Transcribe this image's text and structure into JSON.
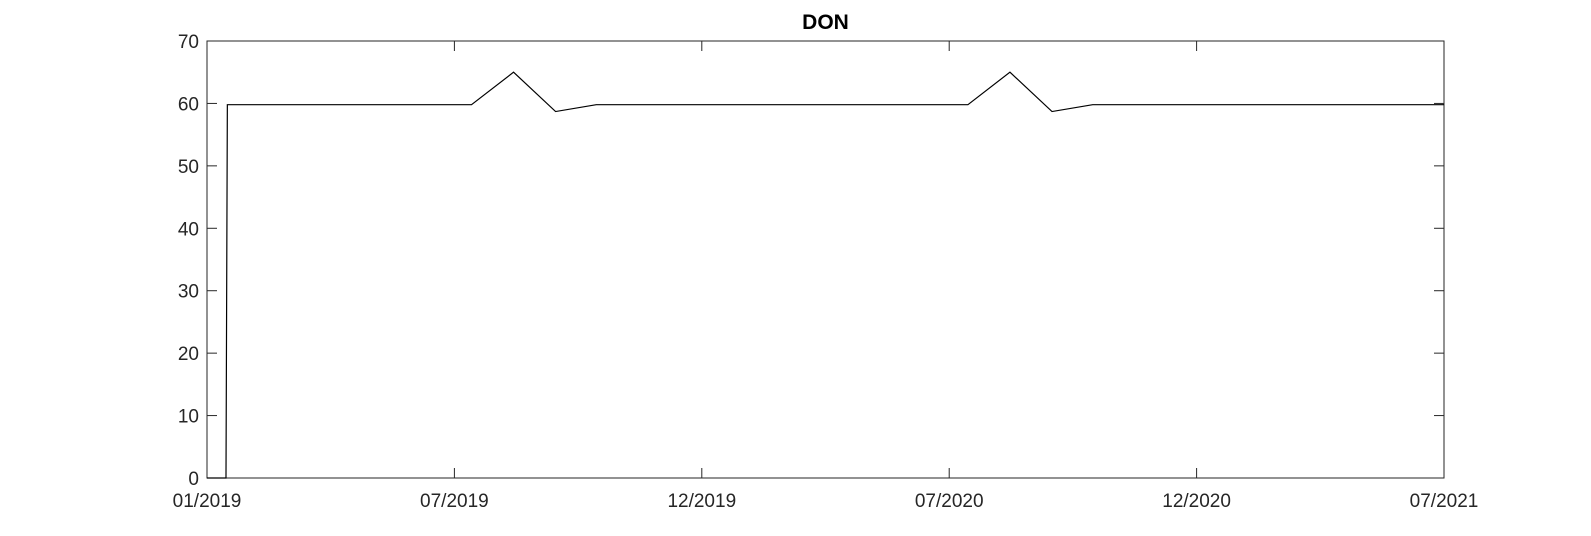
{
  "chart_data": {
    "type": "line",
    "title": "DON",
    "xlabel": "",
    "ylabel": "",
    "x_ticks": [
      "01/2019",
      "07/2019",
      "12/2019",
      "07/2020",
      "12/2020",
      "07/2021"
    ],
    "y_ticks": [
      "0",
      "10",
      "20",
      "30",
      "40",
      "50",
      "60",
      "70"
    ],
    "ylim": [
      0,
      70
    ],
    "xlim": [
      "2019-01-01",
      "2021-07-01"
    ],
    "grid": false,
    "box": true,
    "series": [
      {
        "color": "#000000",
        "points": [
          {
            "x": "2019-01-01",
            "y": 0
          },
          {
            "x": "2019-01-15",
            "y": 0
          },
          {
            "x": "2019-01-16",
            "y": 59.8
          },
          {
            "x": "2019-07-15",
            "y": 59.8
          },
          {
            "x": "2019-08-15",
            "y": 65
          },
          {
            "x": "2019-09-15",
            "y": 58.7
          },
          {
            "x": "2019-10-15",
            "y": 59.8
          },
          {
            "x": "2020-07-15",
            "y": 59.8
          },
          {
            "x": "2020-08-15",
            "y": 65
          },
          {
            "x": "2020-09-15",
            "y": 58.7
          },
          {
            "x": "2020-10-15",
            "y": 59.8
          },
          {
            "x": "2021-07-01",
            "y": 59.8
          }
        ]
      }
    ]
  }
}
